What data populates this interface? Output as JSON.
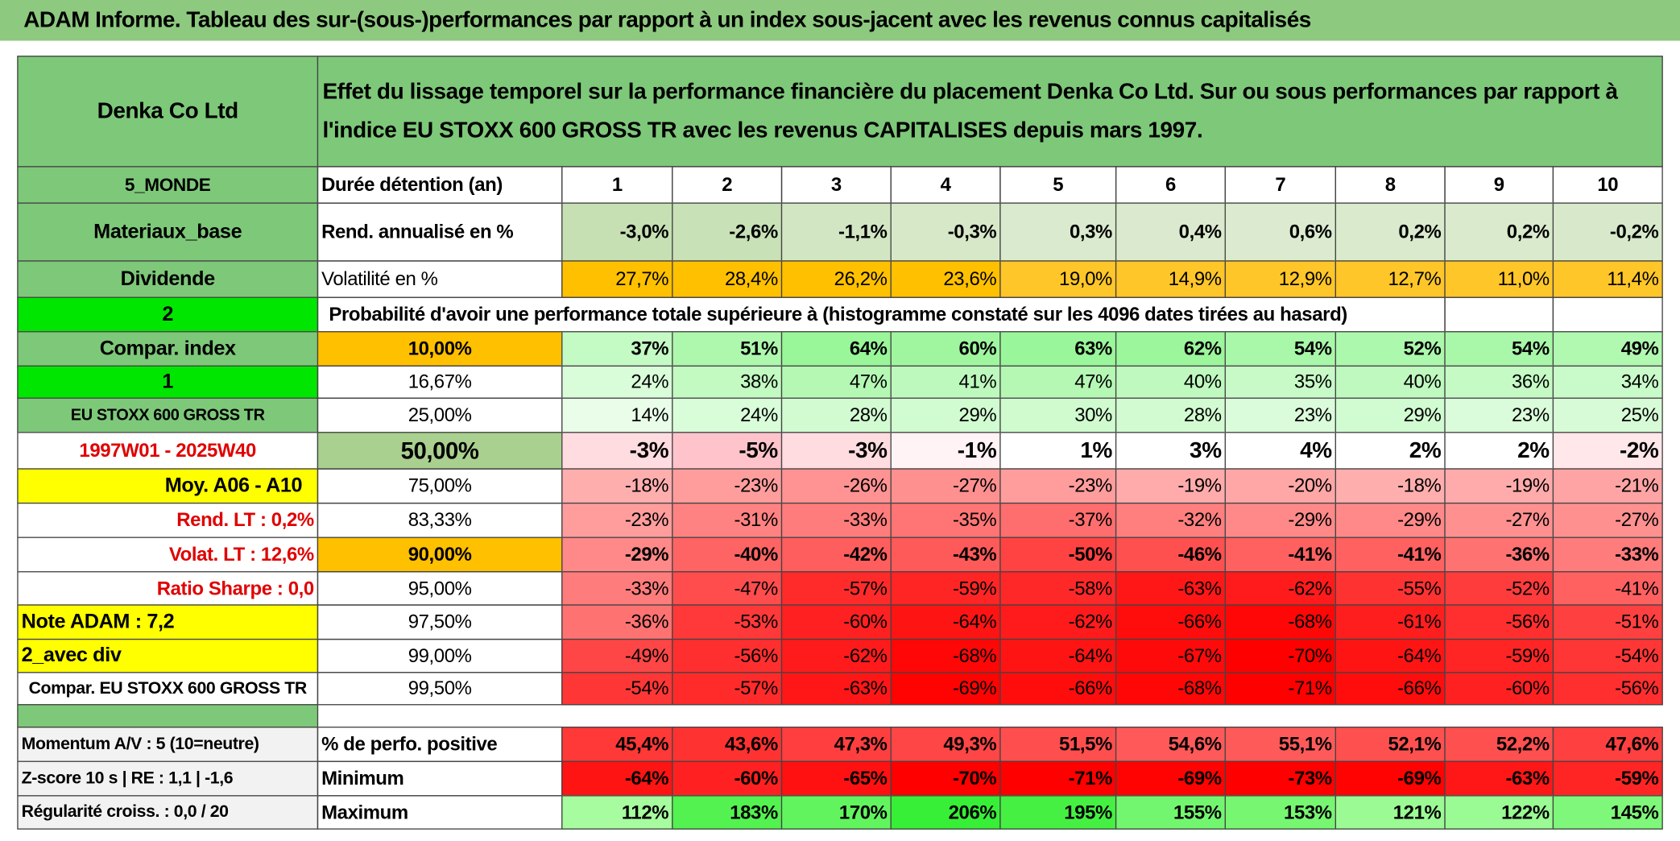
{
  "title": "ADAM Informe. Tableau des sur-(sous-)performances par rapport à un index sous-jacent avec les revenus connus capitalisés",
  "header": {
    "company": "Denka Co Ltd",
    "description": "Effet du lissage temporel sur la performance financière du placement Denka Co Ltd. Sur ou sous performances par rapport à l'indice EU STOXX 600 GROSS TR avec les revenus CAPITALISES depuis mars 1997."
  },
  "rows": [
    {
      "label": "5_MONDE",
      "name": "Durée détention (an)",
      "cells": [
        "1",
        "2",
        "3",
        "4",
        "5",
        "6",
        "7",
        "8",
        "9",
        "10"
      ]
    },
    {
      "label": "Materiaux_base",
      "name": "Rend. annualisé en %",
      "cells": [
        "-3,0%",
        "-2,6%",
        "-1,1%",
        "-0,3%",
        "0,3%",
        "0,4%",
        "0,6%",
        "0,2%",
        "0,2%",
        "-0,2%"
      ]
    },
    {
      "label": "Dividende",
      "name": "Volatilité en %",
      "cells": [
        "27,7%",
        "28,4%",
        "26,2%",
        "23,6%",
        "19,0%",
        "14,9%",
        "12,9%",
        "12,7%",
        "11,0%",
        "11,4%"
      ]
    },
    {
      "label": "2",
      "name": "Probabilité d'avoir une performance totale supérieure à (histogramme constaté sur les 4096 dates tirées au hasard)",
      "cells": []
    },
    {
      "label": "Compar. index",
      "name": "10,00%",
      "cells": [
        "37%",
        "51%",
        "64%",
        "60%",
        "63%",
        "62%",
        "54%",
        "52%",
        "54%",
        "49%"
      ]
    },
    {
      "label": "1",
      "name": "16,67%",
      "cells": [
        "24%",
        "38%",
        "47%",
        "41%",
        "47%",
        "40%",
        "35%",
        "40%",
        "36%",
        "34%"
      ]
    },
    {
      "label": "EU STOXX 600 GROSS TR",
      "name": "25,00%",
      "cells": [
        "14%",
        "24%",
        "28%",
        "29%",
        "30%",
        "28%",
        "23%",
        "29%",
        "23%",
        "25%"
      ]
    },
    {
      "label": "1997W01 - 2025W40",
      "name": "50,00%",
      "cells": [
        "-3%",
        "-5%",
        "-3%",
        "-1%",
        "1%",
        "3%",
        "4%",
        "2%",
        "2%",
        "-2%"
      ]
    },
    {
      "label": "Moy. A06 - A10",
      "name": "75,00%",
      "cells": [
        "-18%",
        "-23%",
        "-26%",
        "-27%",
        "-23%",
        "-19%",
        "-20%",
        "-18%",
        "-19%",
        "-21%"
      ]
    },
    {
      "label": "Rend. LT :   0,2%",
      "name": "83,33%",
      "cells": [
        "-23%",
        "-31%",
        "-33%",
        "-35%",
        "-37%",
        "-32%",
        "-29%",
        "-29%",
        "-27%",
        "-27%"
      ]
    },
    {
      "label": "Volat. LT :   12,6%",
      "name": "90,00%",
      "cells": [
        "-29%",
        "-40%",
        "-42%",
        "-43%",
        "-50%",
        "-46%",
        "-41%",
        "-41%",
        "-36%",
        "-33%"
      ]
    },
    {
      "label": "Ratio Sharpe :    0,0",
      "name": "95,00%",
      "cells": [
        "-33%",
        "-47%",
        "-57%",
        "-59%",
        "-58%",
        "-63%",
        "-62%",
        "-55%",
        "-52%",
        "-41%"
      ]
    },
    {
      "label": "Note ADAM : 7,2",
      "name": "97,50%",
      "cells": [
        "-36%",
        "-53%",
        "-60%",
        "-64%",
        "-62%",
        "-66%",
        "-68%",
        "-61%",
        "-56%",
        "-51%"
      ]
    },
    {
      "label": "2_avec div",
      "name": "99,00%",
      "cells": [
        "-49%",
        "-56%",
        "-62%",
        "-68%",
        "-64%",
        "-67%",
        "-70%",
        "-64%",
        "-59%",
        "-54%"
      ]
    },
    {
      "label": "Compar. EU STOXX 600 GROSS TR",
      "name": "99,50%",
      "cells": [
        "-54%",
        "-57%",
        "-63%",
        "-69%",
        "-66%",
        "-68%",
        "-71%",
        "-66%",
        "-60%",
        "-56%"
      ]
    },
    {
      "label": "Momentum A/V : 5 (10=neutre)",
      "name": "% de perfo. positive",
      "cells": [
        "45,4%",
        "43,6%",
        "47,3%",
        "49,3%",
        "51,5%",
        "54,6%",
        "55,1%",
        "52,1%",
        "52,2%",
        "47,6%"
      ]
    },
    {
      "label": "Z-score 10 s | RE : 1,1 | -1,6",
      "name": "Minimum",
      "cells": [
        "-64%",
        "-60%",
        "-65%",
        "-70%",
        "-71%",
        "-69%",
        "-73%",
        "-69%",
        "-63%",
        "-59%"
      ]
    },
    {
      "label": "Régularité croiss. : 0,0 / 20",
      "name": "Maximum",
      "cells": [
        "112%",
        "183%",
        "170%",
        "206%",
        "195%",
        "155%",
        "153%",
        "121%",
        "122%",
        "145%"
      ]
    }
  ]
}
